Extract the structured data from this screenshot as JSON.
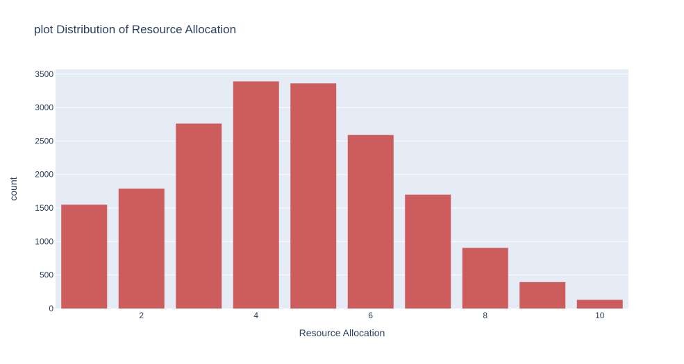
{
  "chart_data": {
    "type": "bar",
    "title": "plot Distribution of Resource Allocation",
    "xlabel": "Resource Allocation",
    "ylabel": "count",
    "x": [
      1,
      2,
      3,
      4,
      5,
      6,
      7,
      8,
      9,
      10
    ],
    "values": [
      1550,
      1790,
      2760,
      3390,
      3360,
      2590,
      1700,
      905,
      395,
      130
    ],
    "xticks": [
      2,
      4,
      6,
      8,
      10
    ],
    "xlim": [
      0.5,
      10.5
    ],
    "yticks": [
      0,
      500,
      1000,
      1500,
      2000,
      2500,
      3000,
      3500
    ],
    "ylim": [
      0,
      3570
    ],
    "grid": true,
    "colors": {
      "bar": "#cd5c5c",
      "plot_bg": "#e5ecf6",
      "grid": "#ffffff",
      "text": "#2a3f5f"
    }
  }
}
